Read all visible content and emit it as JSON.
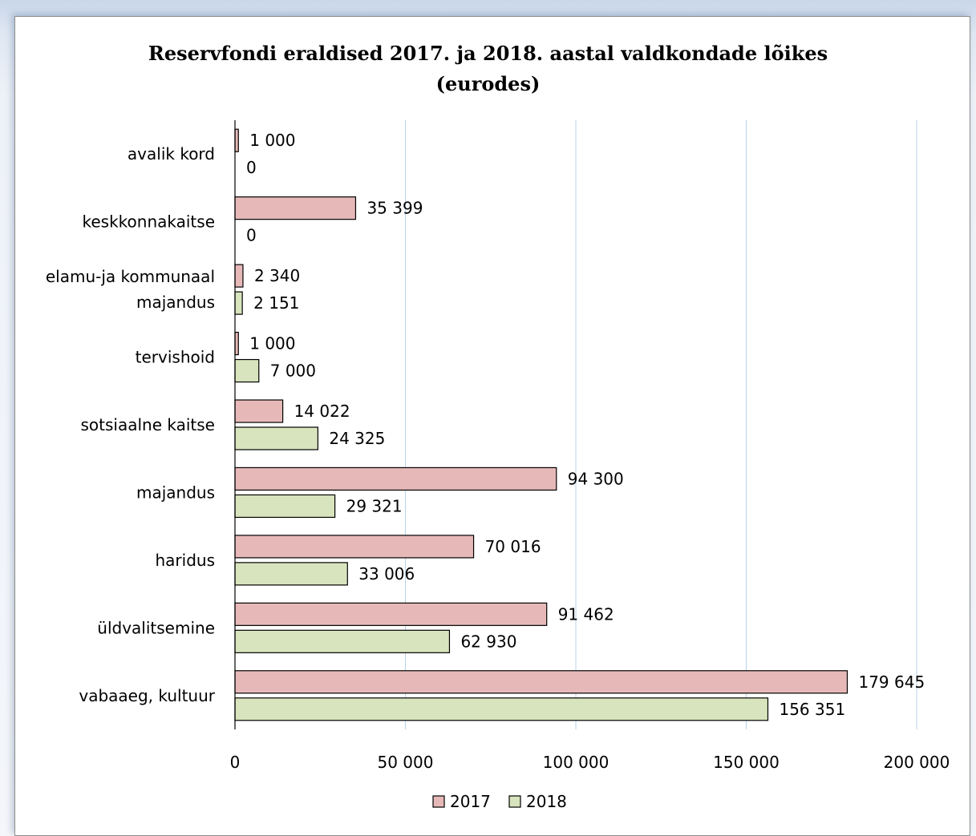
{
  "chart_data": {
    "type": "bar",
    "orientation": "horizontal",
    "title_line1": "Reservfondi eraldised 2017. ja 2018. aastal valdkondade  lõikes",
    "title_line2": "(eurodes)",
    "categories": [
      [
        "avalik kord"
      ],
      [
        "keskkonnakaitse"
      ],
      [
        "elamu-ja kommunaal",
        "majandus"
      ],
      [
        "tervishoid"
      ],
      [
        "sotsiaalne kaitse"
      ],
      [
        "majandus"
      ],
      [
        "haridus"
      ],
      [
        "üldvalitsemine"
      ],
      [
        "vabaaeg, kultuur"
      ]
    ],
    "series": [
      {
        "name": "2017",
        "color": "#e6b9b8",
        "values": [
          1000,
          35399,
          2340,
          1000,
          14022,
          94300,
          70016,
          91462,
          179645
        ],
        "labels": [
          "1 000",
          "35 399",
          "2 340",
          "1 000",
          "14 022",
          "94 300",
          "70 016",
          "91 462",
          "179 645"
        ]
      },
      {
        "name": "2018",
        "color": "#d7e4bd",
        "values": [
          0,
          0,
          2151,
          7000,
          24325,
          29321,
          33006,
          62930,
          156351
        ],
        "labels": [
          "0",
          "0",
          "2 151",
          "7 000",
          "24 325",
          "29 321",
          "33 006",
          "62 930",
          "156 351"
        ]
      }
    ],
    "xlim": [
      0,
      200000
    ],
    "xticks": [
      0,
      50000,
      100000,
      150000,
      200000
    ],
    "xtick_labels": [
      "0",
      "50 000",
      "100 000",
      "150 000",
      "200 000"
    ],
    "grid": "vertical",
    "grid_color": "#b9d3ea",
    "bar_stroke": "#000000",
    "legend_position": "bottom"
  }
}
